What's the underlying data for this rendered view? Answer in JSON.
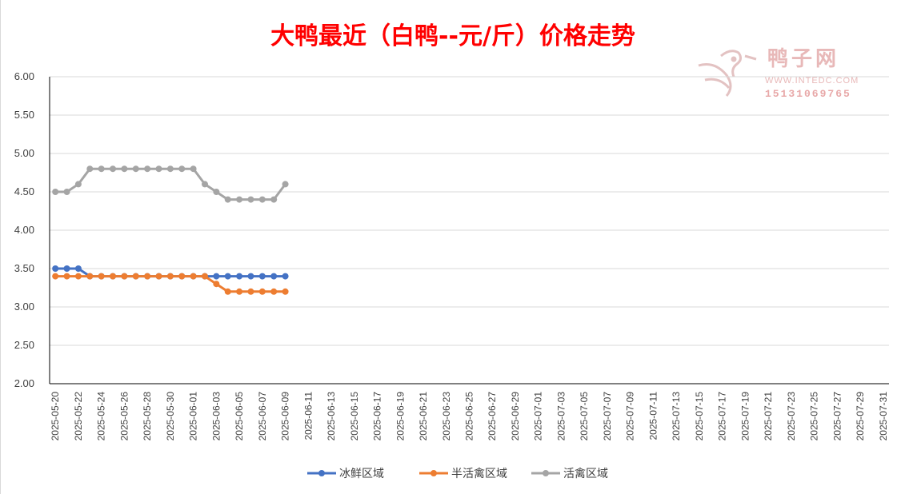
{
  "chart_data": {
    "type": "line",
    "title": "大鸭最近（白鸭--元/斤）价格走势",
    "xlabel": "",
    "ylabel": "",
    "ylim": [
      2.0,
      6.0
    ],
    "yticks": [
      "2.00",
      "2.50",
      "3.00",
      "3.50",
      "4.00",
      "4.50",
      "5.00",
      "5.50",
      "6.00"
    ],
    "grid": true,
    "legend_position": "bottom",
    "x_tick_labels": [
      "2025-05-20",
      "2025-05-22",
      "2025-05-24",
      "2025-05-26",
      "2025-05-28",
      "2025-05-30",
      "2025-06-01",
      "2025-06-03",
      "2025-06-05",
      "2025-06-07",
      "2025-06-09",
      "2025-06-11",
      "2025-06-13",
      "2025-06-15",
      "2025-06-17",
      "2025-06-19",
      "2025-06-21",
      "2025-06-23",
      "2025-06-25",
      "2025-06-27",
      "2025-06-29",
      "2025-07-01",
      "2025-07-03",
      "2025-07-05",
      "2025-07-07",
      "2025-07-09",
      "2025-07-11",
      "2025-07-13",
      "2025-07-15",
      "2025-07-17",
      "2025-07-19",
      "2025-07-21",
      "2025-07-23",
      "2025-07-25",
      "2025-07-27",
      "2025-07-29",
      "2025-07-31"
    ],
    "x": [
      "2025-05-20",
      "2025-05-21",
      "2025-05-22",
      "2025-05-23",
      "2025-05-24",
      "2025-05-25",
      "2025-05-26",
      "2025-05-27",
      "2025-05-28",
      "2025-05-29",
      "2025-05-30",
      "2025-05-31",
      "2025-06-01",
      "2025-06-02",
      "2025-06-03",
      "2025-06-04",
      "2025-06-05",
      "2025-06-06",
      "2025-06-07",
      "2025-06-08",
      "2025-06-09"
    ],
    "series": [
      {
        "name": "冰鲜区域",
        "color": "#4472c4",
        "values": [
          3.5,
          3.5,
          3.5,
          3.4,
          3.4,
          3.4,
          3.4,
          3.4,
          3.4,
          3.4,
          3.4,
          3.4,
          3.4,
          3.4,
          3.4,
          3.4,
          3.4,
          3.4,
          3.4,
          3.4,
          3.4
        ]
      },
      {
        "name": "半活禽区域",
        "color": "#ed7d31",
        "values": [
          3.4,
          3.4,
          3.4,
          3.4,
          3.4,
          3.4,
          3.4,
          3.4,
          3.4,
          3.4,
          3.4,
          3.4,
          3.4,
          3.4,
          3.3,
          3.2,
          3.2,
          3.2,
          3.2,
          3.2,
          3.2
        ]
      },
      {
        "name": "活禽区域",
        "color": "#a5a5a5",
        "values": [
          4.5,
          4.5,
          4.6,
          4.8,
          4.8,
          4.8,
          4.8,
          4.8,
          4.8,
          4.8,
          4.8,
          4.8,
          4.8,
          4.6,
          4.5,
          4.4,
          4.4,
          4.4,
          4.4,
          4.4,
          4.6
        ]
      }
    ]
  },
  "watermark": {
    "name": "鸭子网",
    "url": "WWW.INTEDC.COM",
    "phone": "15131069765",
    "color": "#e8b8b8"
  }
}
